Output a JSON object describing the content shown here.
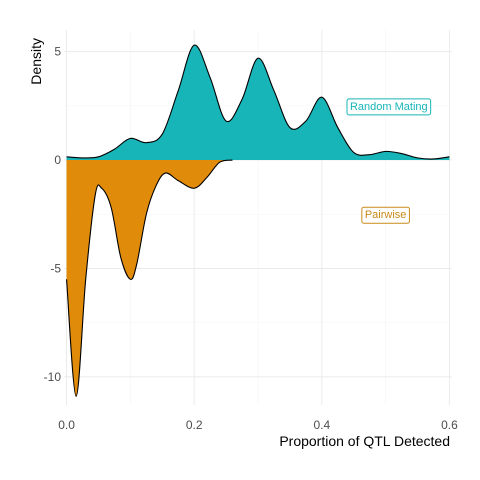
{
  "chart_data": {
    "type": "area",
    "xlabel": "Proportion of QTL Detected",
    "ylabel": "Density",
    "xlim": [
      -0.004,
      0.604
    ],
    "ylim": [
      -11.3,
      6.0
    ],
    "x_ticks": [
      0.0,
      0.2,
      0.4,
      0.6
    ],
    "x_tick_labels": [
      "0.0",
      "0.2",
      "0.4",
      "0.6"
    ],
    "y_ticks": [
      5,
      0,
      -5,
      -10
    ],
    "y_tick_labels": [
      "5",
      "0",
      "-5",
      "-10"
    ],
    "grid": true,
    "legend": "none",
    "series": [
      {
        "name": "Random Mating",
        "color": "#17b5b8",
        "x": [
          0.0,
          0.025,
          0.05,
          0.075,
          0.1,
          0.125,
          0.15,
          0.175,
          0.2,
          0.225,
          0.25,
          0.275,
          0.3,
          0.325,
          0.35,
          0.375,
          0.4,
          0.425,
          0.45,
          0.475,
          0.5,
          0.525,
          0.55,
          0.575,
          0.6
        ],
        "y": [
          0.15,
          0.1,
          0.15,
          0.5,
          1.0,
          0.8,
          1.2,
          3.2,
          5.3,
          3.8,
          1.8,
          2.8,
          4.7,
          3.2,
          1.5,
          1.8,
          2.9,
          1.5,
          0.35,
          0.25,
          0.4,
          0.3,
          0.1,
          0.05,
          0.15
        ]
      },
      {
        "name": "Pairwise",
        "color": "#e08b0a",
        "x": [
          0.0,
          0.015,
          0.03,
          0.045,
          0.055,
          0.07,
          0.085,
          0.1,
          0.11,
          0.125,
          0.14,
          0.155,
          0.175,
          0.2,
          0.22,
          0.24,
          0.26
        ],
        "y": [
          -5.5,
          -10.9,
          -5.5,
          -1.6,
          -1.3,
          -2.2,
          -4.5,
          -5.5,
          -4.8,
          -2.5,
          -1.2,
          -0.6,
          -0.95,
          -1.3,
          -0.8,
          -0.1,
          0.0
        ]
      }
    ],
    "annotations": [
      {
        "text": "Random Mating",
        "x": 0.505,
        "y": 2.5,
        "color": "#17b5b8"
      },
      {
        "text": "Pairwise",
        "x": 0.5,
        "y": -2.5,
        "color": "#c98a1a"
      }
    ]
  }
}
